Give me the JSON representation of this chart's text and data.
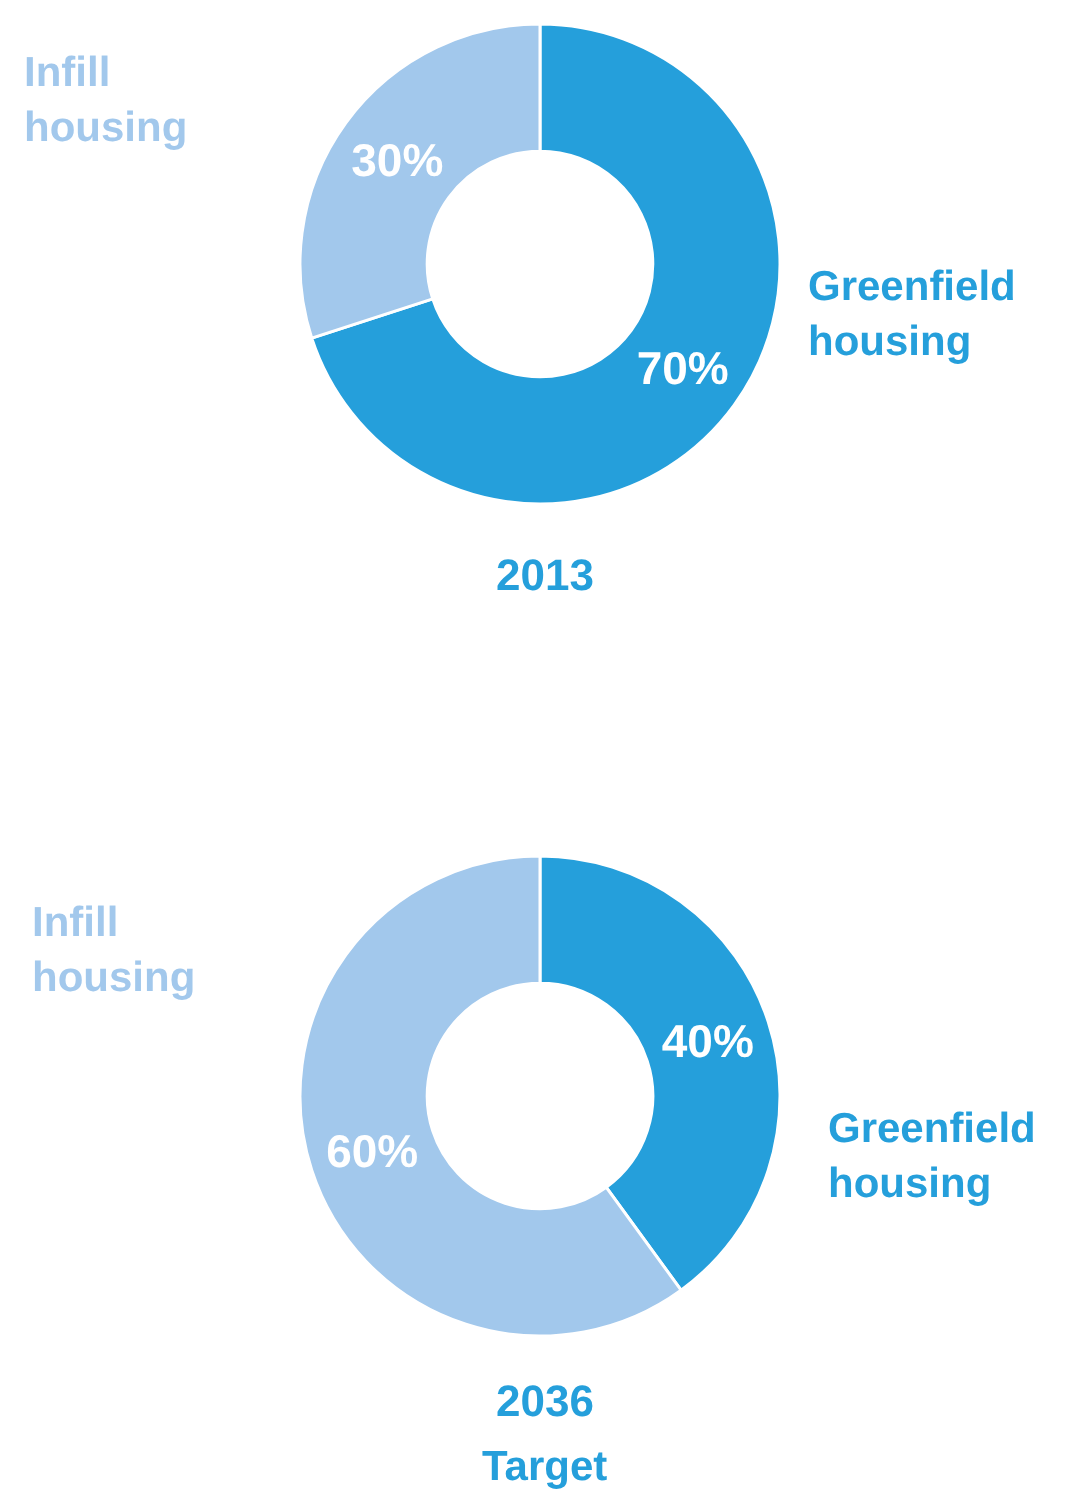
{
  "chart_data": [
    {
      "type": "donut",
      "title": "2013",
      "categories": [
        "Greenfield housing",
        "Infill housing"
      ],
      "values": [
        70,
        30
      ],
      "colors": [
        "#259fdb",
        "#a2c8ec"
      ],
      "value_labels": [
        "70%",
        "30%"
      ],
      "legend": false
    },
    {
      "type": "donut",
      "title": "2036",
      "subtitle": "Target",
      "categories": [
        "Greenfield housing",
        "Infill housing"
      ],
      "values": [
        40,
        60
      ],
      "colors": [
        "#259fdb",
        "#a2c8ec"
      ],
      "value_labels": [
        "40%",
        "60%"
      ],
      "legend": false
    }
  ]
}
